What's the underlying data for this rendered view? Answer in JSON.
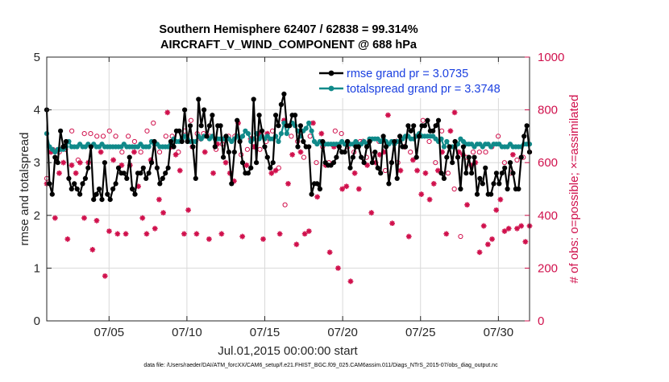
{
  "chart_data": {
    "type": "line",
    "title": "Southern Hemisphere 62407 / 62838 = 99.314%",
    "subtitle": "AIRCRAFT_V_WIND_COMPONENT @ 688 hPa",
    "xlabel": "Jul.01,2015 00:00:00 start",
    "ylabel": "rmse and totalspread",
    "y2label": "# of obs: o=possible; ×=assimilated",
    "footnote": "data file: /Users/raeder/DAI/ATM_forcXX/CAM6_setup/f.e21.FHIST_BGC.f09_025.CAM6assim.011/Diags_NTrS_2015-07/obs_diag_output.nc",
    "xlim": [
      1.0,
      32.0
    ],
    "ylim": [
      0,
      5
    ],
    "y2lim": [
      0,
      1000
    ],
    "grid": true,
    "legend_position": "top-right",
    "x_ticks": [
      {
        "value": 5,
        "label": "07/05"
      },
      {
        "value": 10,
        "label": "07/10"
      },
      {
        "value": 15,
        "label": "07/15"
      },
      {
        "value": 20,
        "label": "07/20"
      },
      {
        "value": 25,
        "label": "07/25"
      },
      {
        "value": 30,
        "label": "07/30"
      }
    ],
    "y_ticks": [
      "0",
      "1",
      "2",
      "3",
      "4",
      "5"
    ],
    "y2_ticks": [
      "0",
      "200",
      "400",
      "600",
      "800",
      "1000"
    ],
    "colors": {
      "rmse": "#000000",
      "spread": "#108a8a",
      "obs": "#d0104c",
      "legend_text": "#1a3fe0",
      "grid": "#d9d9d9"
    },
    "series": [
      {
        "name": "rmse grand pr = 3.0735",
        "values": [
          4.0,
          2.6,
          2.4,
          3.1,
          3.0,
          3.6,
          3.3,
          3.4,
          2.7,
          2.5,
          2.6,
          2.5,
          2.4,
          2.6,
          2.7,
          2.9,
          3.3,
          2.3,
          2.4,
          2.5,
          2.3,
          3.0,
          2.4,
          2.3,
          2.5,
          2.6,
          2.9,
          2.8,
          2.8,
          2.7,
          3.1,
          2.5,
          2.4,
          2.8,
          2.8,
          2.9,
          2.7,
          2.8,
          3.0,
          3.4,
          2.9,
          2.6,
          2.7,
          2.8,
          2.9,
          3.4,
          3.3,
          3.6,
          3.6,
          3.4,
          4.0,
          3.4,
          3.7,
          3.3,
          2.7,
          4.2,
          3.7,
          4.0,
          3.5,
          3.7,
          3.9,
          3.3,
          3.7,
          3.7,
          3.1,
          3.5,
          3.2,
          2.6,
          3.2,
          3.8,
          3.4,
          3.0,
          2.8,
          2.8,
          2.9,
          4.2,
          3.0,
          3.9,
          3.6,
          3.3,
          3.1,
          2.9,
          3.0,
          3.9,
          3.7,
          4.1,
          4.3,
          3.7,
          3.7,
          3.9,
          3.9,
          3.3,
          3.7,
          3.4,
          3.3,
          3.3,
          2.4,
          2.6,
          2.6,
          2.5,
          3.4,
          3.0,
          2.95,
          2.95,
          3.0,
          3.1,
          3.3,
          3.2,
          3.2,
          3.4,
          2.9,
          3.1,
          3.3,
          3.3,
          3.1,
          3.0,
          3.3,
          3.4,
          3.0,
          3.2,
          2.9,
          2.8,
          3.5,
          3.3,
          2.6,
          3.0,
          3.4,
          2.7,
          3.5,
          3.3,
          3.3,
          3.7,
          3.6,
          3.7,
          3.1,
          3.5,
          3.7,
          3.7,
          3.8,
          3.6,
          3.6,
          3.7,
          3.8,
          2.8,
          2.7,
          3.1,
          3.3,
          3.0,
          3.4,
          3.1,
          2.5,
          3.3,
          2.8,
          3.1,
          2.8,
          3.1,
          2.4,
          2.7,
          2.6,
          2.9,
          2.4,
          2.4,
          2.6,
          2.8,
          2.6,
          2.8,
          2.9,
          2.5,
          3.0,
          2.8,
          2.5,
          2.5,
          3.1,
          3.5,
          3.7,
          3.2
        ]
      },
      {
        "name": "totalspread grand pr = 3.3748",
        "values": [
          3.55,
          3.3,
          3.25,
          3.2,
          3.25,
          3.25,
          3.25,
          3.3,
          3.4,
          3.3,
          3.3,
          3.3,
          3.35,
          3.3,
          3.3,
          3.35,
          3.3,
          3.35,
          3.3,
          3.3,
          3.35,
          3.3,
          3.3,
          3.3,
          3.3,
          3.3,
          3.3,
          3.3,
          3.35,
          3.3,
          3.3,
          3.3,
          3.3,
          3.3,
          3.35,
          3.3,
          3.3,
          3.3,
          3.4,
          3.35,
          3.35,
          3.3,
          3.3,
          3.3,
          3.3,
          3.35,
          3.45,
          3.4,
          3.4,
          3.45,
          3.5,
          3.45,
          3.4,
          3.4,
          3.4,
          3.5,
          3.45,
          3.5,
          3.5,
          3.45,
          3.5,
          3.45,
          3.45,
          3.45,
          3.45,
          3.45,
          3.45,
          3.4,
          3.45,
          3.5,
          3.45,
          3.5,
          3.6,
          3.55,
          3.4,
          3.45,
          3.55,
          3.45,
          3.5,
          3.45,
          3.5,
          3.45,
          3.45,
          3.5,
          3.4,
          3.55,
          3.75,
          3.55,
          3.7,
          3.75,
          3.7,
          3.6,
          3.5,
          3.6,
          3.65,
          3.75,
          3.6,
          3.4,
          3.35,
          3.4,
          3.35,
          3.35,
          3.35,
          3.35,
          3.35,
          3.35,
          3.35,
          3.4,
          3.35,
          3.4,
          3.35,
          3.35,
          3.4,
          3.35,
          3.35,
          3.4,
          3.35,
          3.45,
          3.45,
          3.45,
          3.45,
          3.4,
          3.45,
          3.4,
          3.35,
          3.4,
          3.35,
          3.4,
          3.4,
          3.45,
          3.5,
          3.5,
          3.45,
          3.45,
          3.5,
          3.55,
          3.5,
          3.5,
          3.5,
          3.5,
          3.5,
          3.45,
          3.4,
          3.45,
          3.3,
          3.4,
          3.3,
          3.3,
          3.3,
          3.35,
          3.45,
          3.4,
          3.35,
          3.35,
          3.35,
          3.3,
          3.35,
          3.35,
          3.3,
          3.35,
          3.35,
          3.3,
          3.35,
          3.35,
          3.35,
          3.3,
          3.3,
          3.3,
          3.35,
          3.3,
          3.3,
          3.3,
          3.3,
          3.35,
          3.35,
          3.35
        ]
      },
      {
        "name": "# of obs assimilated",
        "values": [
          520,
          640,
          390,
          560,
          600,
          310,
          590,
          560,
          600,
          390,
          600,
          270,
          380,
          640,
          170,
          340,
          610,
          330,
          590,
          330,
          590,
          640,
          510,
          390,
          330,
          610,
          350,
          460,
          410,
          790,
          660,
          630,
          570,
          330,
          420,
          660,
          330,
          690,
          640,
          310,
          560,
          670,
          330,
          600,
          560,
          530,
          750,
          320,
          590,
          690,
          660,
          710,
          310,
          710,
          560,
          570,
          330,
          760,
          520,
          630,
          290,
          640,
          330,
          340,
          750,
          470,
          710,
          590,
          260,
          660,
          200,
          500,
          510,
          150,
          560,
          500,
          680,
          590,
          410,
          600,
          630,
          640,
          780,
          370,
          680,
          570,
          660,
          320,
          610,
          570,
          480,
          560,
          460,
          520,
          570,
          640,
          330,
          720,
          790,
          640,
          630,
          440,
          590,
          600,
          260,
          360,
          290,
          310,
          420,
          460,
          340,
          350,
          630,
          350,
          360,
          300,
          360
        ]
      },
      {
        "name": "# of obs possible",
        "values": [
          540,
          650,
          640,
          650,
          720,
          610,
          710,
          710,
          700,
          700,
          720,
          700,
          640,
          700,
          680,
          640,
          720,
          750,
          640,
          700,
          700,
          640,
          720,
          760,
          710,
          710,
          700,
          650,
          670,
          700,
          700,
          630,
          650,
          660,
          650,
          680,
          720,
          580,
          440,
          700,
          680,
          620,
          700,
          600,
          660,
          600,
          720,
          710,
          660,
          640,
          680,
          620,
          630,
          680,
          570,
          600,
          600,
          660,
          640,
          700,
          760,
          680,
          600,
          720,
          560,
          500,
          320,
          620,
          640,
          640,
          640,
          660,
          700,
          600,
          560,
          610,
          620,
          640
        ]
      }
    ]
  }
}
